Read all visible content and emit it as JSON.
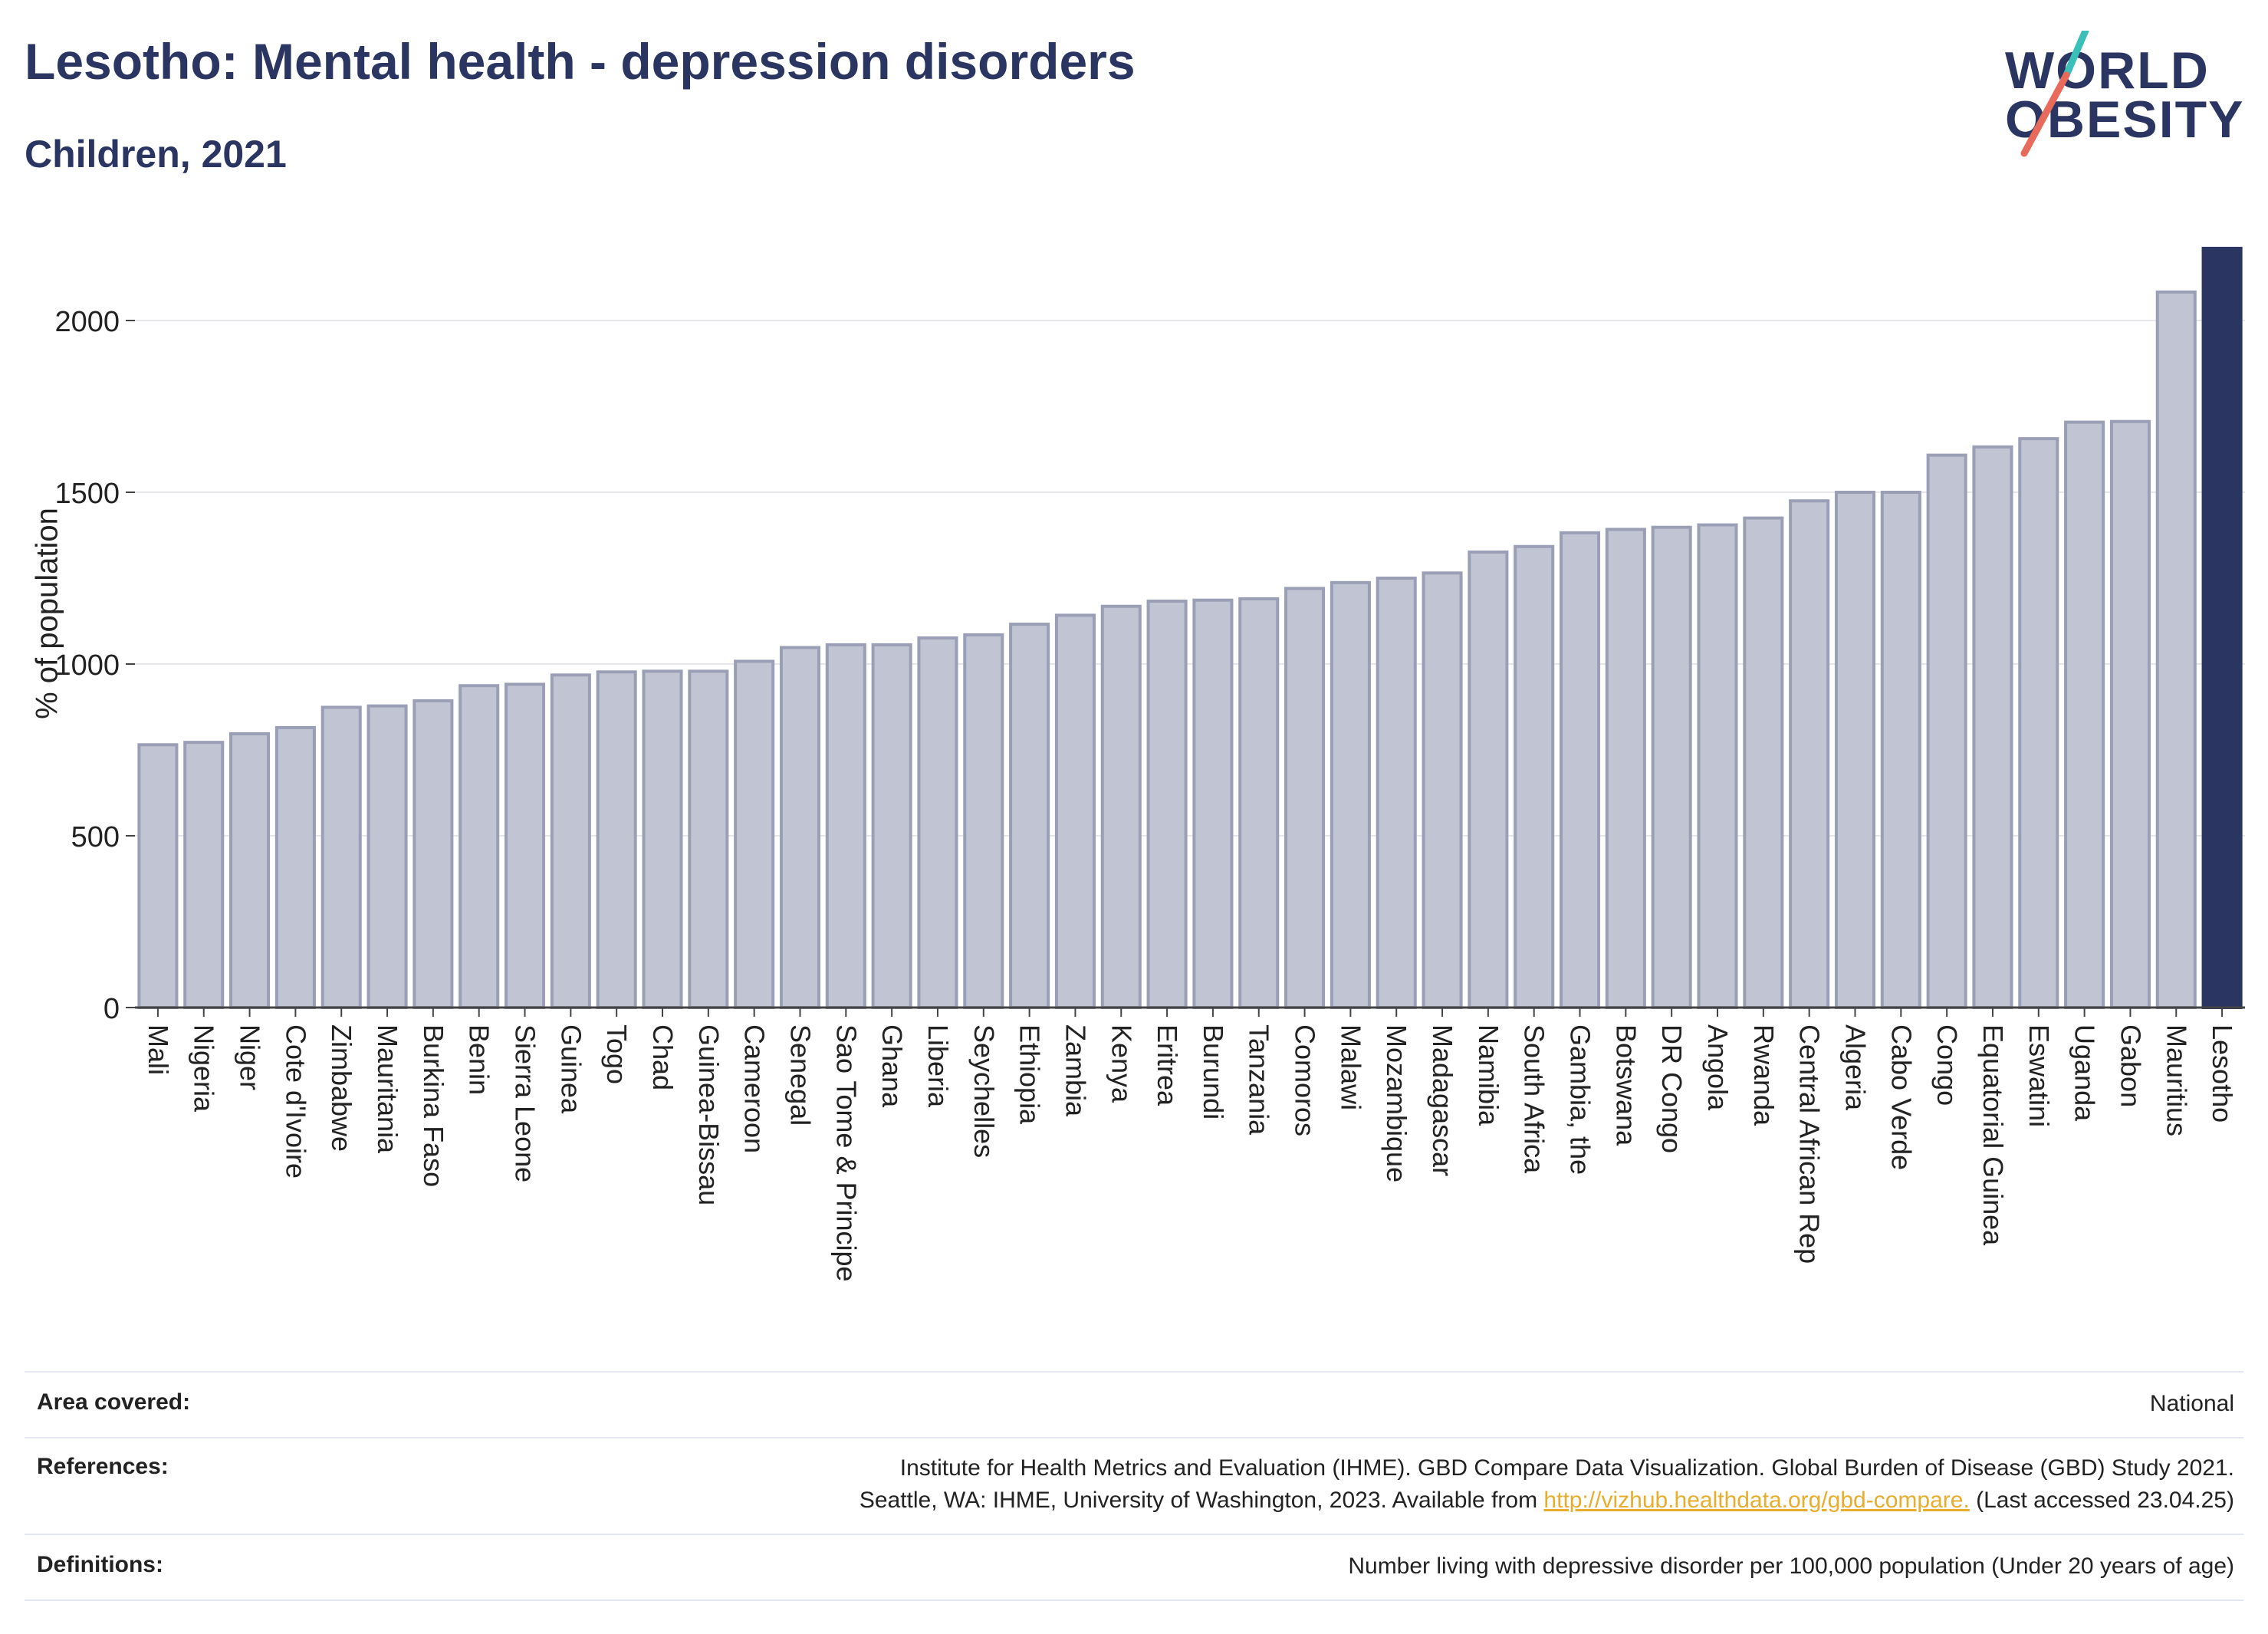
{
  "header": {
    "title": "Lesotho: Mental health - depression disorders",
    "subtitle": "Children, 2021"
  },
  "logo": {
    "line1": "WORLD",
    "line2": "OBESITY",
    "slash_colors": [
      "#3bbfb9",
      "#e86a5a"
    ]
  },
  "colors": {
    "bar": "#c1c4d2",
    "bar_stroke": "#9a9fb6",
    "highlight": "#2b3561",
    "grid": "#e6e6ee"
  },
  "chart_data": {
    "type": "bar",
    "title": "Lesotho: Mental health - depression disorders",
    "subtitle": "Children, 2021",
    "ylabel": "% of population",
    "xlabel": "",
    "ylim": [
      0,
      2200
    ],
    "yticks": [
      0,
      500,
      1000,
      1500,
      2000
    ],
    "grid": true,
    "highlight": "Lesotho",
    "categories": [
      "Mali",
      "Nigeria",
      "Niger",
      "Cote d'Ivoire",
      "Zimbabwe",
      "Mauritania",
      "Burkina Faso",
      "Benin",
      "Sierra Leone",
      "Guinea",
      "Togo",
      "Chad",
      "Guinea-Bissau",
      "Cameroon",
      "Senegal",
      "Sao Tome & Principe",
      "Ghana",
      "Liberia",
      "Seychelles",
      "Ethiopia",
      "Zambia",
      "Kenya",
      "Eritrea",
      "Burundi",
      "Tanzania",
      "Comoros",
      "Malawi",
      "Mozambique",
      "Madagascar",
      "Namibia",
      "South Africa",
      "Gambia, the",
      "Botswana",
      "DR Congo",
      "Angola",
      "Rwanda",
      "Central African Rep",
      "Algeria",
      "Cabo Verde",
      "Congo",
      "Equatorial Guinea",
      "Eswatini",
      "Uganda",
      "Gabon",
      "Mauritius",
      "Lesotho"
    ],
    "values": [
      765,
      772,
      797,
      815,
      874,
      878,
      893,
      937,
      941,
      968,
      977,
      979,
      979,
      1008,
      1048,
      1056,
      1056,
      1076,
      1085,
      1116,
      1142,
      1168,
      1183,
      1186,
      1190,
      1220,
      1237,
      1250,
      1265,
      1326,
      1342,
      1382,
      1392,
      1398,
      1405,
      1425,
      1475,
      1500,
      1500,
      1608,
      1632,
      1656,
      1704,
      1706,
      2083,
      2210
    ]
  },
  "footer": {
    "area_label": "Area covered:",
    "area_value": "National",
    "references_label": "References:",
    "references_line1": "Institute for Health Metrics and Evaluation (IHME). GBD Compare Data Visualization. Global Burden of Disease (GBD) Study 2021.",
    "references_line2_pre": "Seattle, WA: IHME, University of Washington, 2023. Available from ",
    "references_link": "http://vizhub.healthdata.org/gbd-compare.",
    "references_line2_post": " (Last accessed 23.04.25)",
    "definitions_label": "Definitions:",
    "definitions_value": "Number living with depressive disorder per 100,000 population (Under 20 years of age)"
  }
}
